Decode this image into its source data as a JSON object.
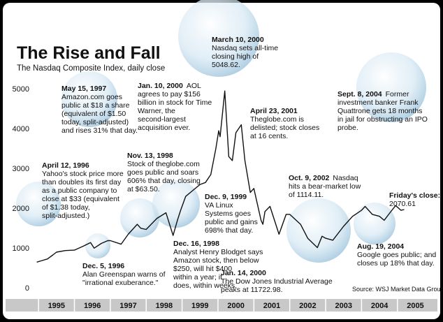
{
  "chart_data": {
    "type": "line",
    "title": "The Rise and Fall",
    "subtitle": "The Nasdaq Composite Index, daily close",
    "source": "Source: WSJ Market Data Group",
    "color": "#111111",
    "x": [
      1994.95,
      1995.1,
      1995.25,
      1995.4,
      1995.5,
      1995.75,
      1996.0,
      1996.25,
      1996.45,
      1996.55,
      1996.75,
      1996.93,
      1997.0,
      1997.3,
      1997.5,
      1997.75,
      1997.85,
      1998.0,
      1998.3,
      1998.55,
      1998.75,
      1998.87,
      1998.96,
      1999.1,
      1999.3,
      1999.5,
      1999.65,
      1999.8,
      1999.94,
      2000.02,
      2000.06,
      2000.19,
      2000.3,
      2000.4,
      2000.5,
      2000.65,
      2000.75,
      2000.9,
      2001.0,
      2001.2,
      2001.25,
      2001.31,
      2001.45,
      2001.7,
      2001.9,
      2002.0,
      2002.3,
      2002.5,
      2002.77,
      2002.9,
      2003.0,
      2003.2,
      2003.5,
      2003.75,
      2004.0,
      2004.1,
      2004.3,
      2004.5,
      2004.63,
      2004.8,
      2004.95,
      2005.1,
      2005.19
    ],
    "values": [
      750,
      790,
      830,
      930,
      1000,
      1040,
      1050,
      1150,
      1240,
      1100,
      1220,
      1290,
      1290,
      1200,
      1450,
      1700,
      1600,
      1570,
      1850,
      1990,
      1420,
      1800,
      2050,
      2400,
      2550,
      2700,
      2750,
      2950,
      3600,
      4050,
      3900,
      5048.62,
      3400,
      3300,
      4000,
      4200,
      3300,
      2500,
      2600,
      1800,
      1700,
      2020,
      2150,
      1450,
      1950,
      1950,
      1700,
      1350,
      1114.11,
      1400,
      1350,
      1300,
      1650,
      1900,
      2050,
      2150,
      1950,
      1900,
      1800,
      2000,
      2170,
      2050,
      2070.61
    ],
    "xlim": [
      1994.9,
      2005.9
    ],
    "xticks": [
      {
        "value": 1995.5,
        "label": "1995"
      },
      {
        "value": 1996.5,
        "label": "1996"
      },
      {
        "value": 1997.5,
        "label": "1997"
      },
      {
        "value": 1998.5,
        "label": "1998"
      },
      {
        "value": 1999.5,
        "label": "1999"
      },
      {
        "value": 2000.5,
        "label": "2000"
      },
      {
        "value": 2001.5,
        "label": "2001"
      },
      {
        "value": 2002.5,
        "label": "2002"
      },
      {
        "value": 2003.5,
        "label": "2003"
      },
      {
        "value": 2004.5,
        "label": "2004"
      },
      {
        "value": 2005.5,
        "label": "2005"
      }
    ],
    "ylim": [
      0,
      5200
    ],
    "yticks": [
      0,
      1000,
      2000,
      3000,
      4000,
      5000
    ],
    "final_label": "Friday's close:",
    "annotations": [
      {
        "title": "May 15, 1997",
        "lines": [
          "Amazon.com goes",
          "public at $18 a share",
          "(equivalent of $1.50",
          "today, split-adjusted)",
          "and rises 31% that day."
        ]
      },
      {
        "title": "Jan. 10, 2000",
        "lines": [
          "AOL",
          "agrees to pay $156",
          "billion in stock for Time",
          "Warner, the",
          "second-largest",
          "acquisition ever."
        ]
      },
      {
        "title": "March 10, 2000",
        "lines": [
          "Nasdaq sets all-time",
          "closing high of",
          "5048.62."
        ]
      },
      {
        "title": "April 23, 2001",
        "lines": [
          "Theglobe.com is",
          "delisted; stock closes",
          "at 16 cents."
        ]
      },
      {
        "title": "Sept. 8, 2004",
        "lines": [
          "Former",
          "investment banker Frank",
          "Quattrone gets 18 months",
          "in jail for obstructing an IPO",
          "probe."
        ]
      },
      {
        "title": "April 12, 1996",
        "lines": [
          "Yahoo's stock price more",
          "than doubles its first day",
          "as a public company to",
          "close at $33 (equivalent",
          "of $1.38 today,",
          "split-adjusted.)"
        ]
      },
      {
        "title": "Nov. 13, 1998",
        "lines": [
          "Stock of theglobe.com",
          "goes public and soars",
          "606% that day, closing",
          "at $63.50."
        ]
      },
      {
        "title": "Oct. 9, 2002",
        "lines": [
          "Nasdaq",
          "hits a bear-market low",
          "of 1114.11."
        ]
      },
      {
        "title": "Dec. 9, 1999",
        "lines": [
          "VA Linux",
          "Systems  goes",
          "public and gains",
          "698% that day."
        ]
      },
      {
        "title": "Dec. 16, 1998",
        "lines": [
          "Analyst Henry Blodget says",
          "Amazon stock, then below",
          "$250, will hit $400",
          "within a year; it",
          "does, within weeks."
        ]
      },
      {
        "title": "Dec. 5, 1996",
        "lines": [
          "Alan Greenspan warns of",
          "\"irrational exuberance.\""
        ]
      },
      {
        "title": "Jan. 14, 2000",
        "lines": [
          "The Dow Jones Industrial Average",
          "peaks at 11722.98."
        ]
      },
      {
        "title": "Aug. 19, 2004",
        "lines": [
          "Google goes public; and",
          "closes up 18% that day."
        ]
      }
    ]
  }
}
